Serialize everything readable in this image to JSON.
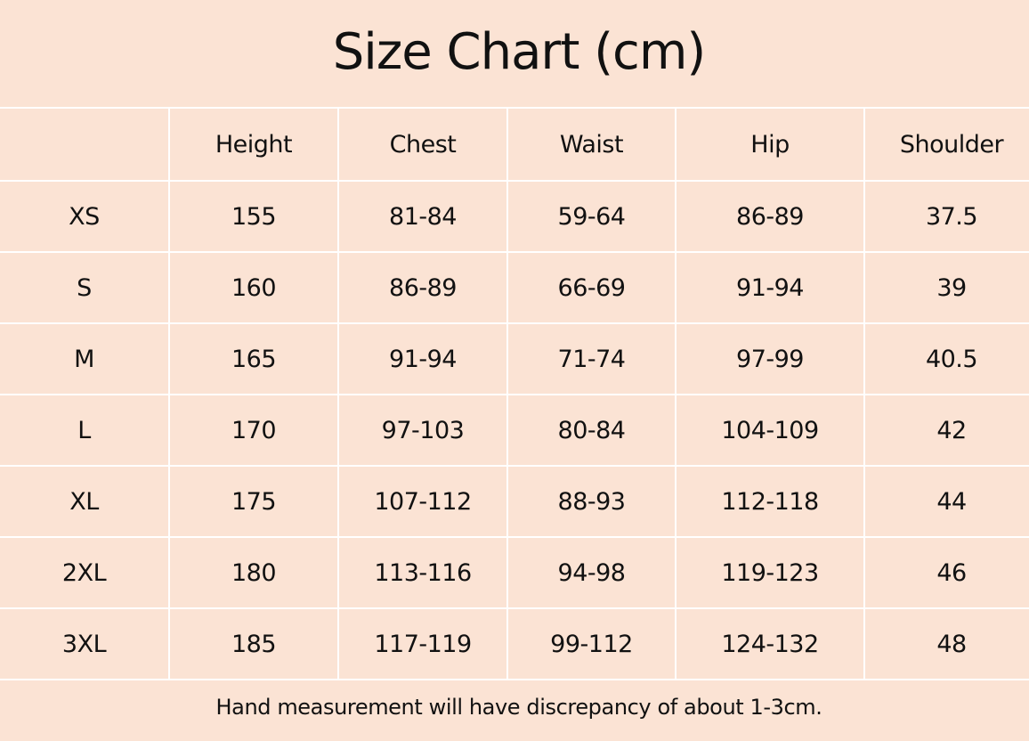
{
  "title": "Size Chart (cm)",
  "columns": [
    "",
    "Height",
    "Chest",
    "Waist",
    "Hip",
    "Shoulder"
  ],
  "rows": [
    [
      "XS",
      "155",
      "81-84",
      "59-64",
      "86-89",
      "37.5"
    ],
    [
      "S",
      "160",
      "86-89",
      "66-69",
      "91-94",
      "39"
    ],
    [
      "M",
      "165",
      "91-94",
      "71-74",
      "97-99",
      "40.5"
    ],
    [
      "L",
      "170",
      "97-103",
      "80-84",
      "104-109",
      "42"
    ],
    [
      "XL",
      "175",
      "107-112",
      "88-93",
      "112-118",
      "44"
    ],
    [
      "2XL",
      "180",
      "113-116",
      "94-98",
      "119-123",
      "46"
    ],
    [
      "3XL",
      "185",
      "117-119",
      "99-112",
      "124-132",
      "48"
    ]
  ],
  "footer": "Hand measurement will have discrepancy of about 1-3cm.",
  "colors": {
    "background": "#fbe3d4",
    "grid": "#ffffff",
    "text": "#111111"
  }
}
